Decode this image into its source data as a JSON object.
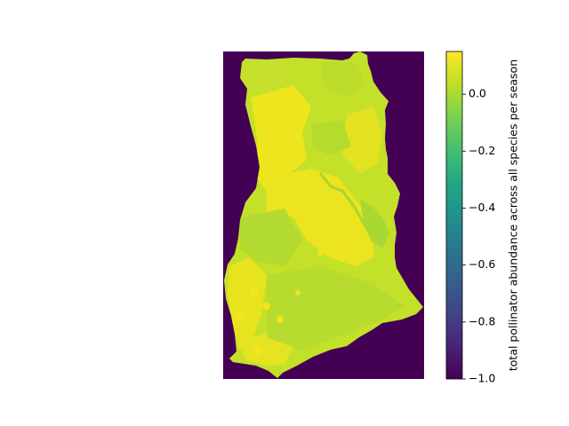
{
  "colorbar": {
    "label": "total pollinator abundance across all species per season",
    "colormap": "viridis",
    "vmin": -1.0,
    "vmax": 0.15,
    "ticks": [
      0.0,
      -0.2,
      -0.4,
      -0.6,
      -0.8,
      -1.0
    ],
    "tick_labels": [
      "0.0",
      "−0.2",
      "−0.4",
      "−0.6",
      "−0.8",
      "−1.0"
    ]
  },
  "map": {
    "region": "Ghana",
    "background_value": -1.0,
    "background_color": "#440154",
    "land_color_main": "#b8de29",
    "land_color_high": "#f1e51d"
  }
}
